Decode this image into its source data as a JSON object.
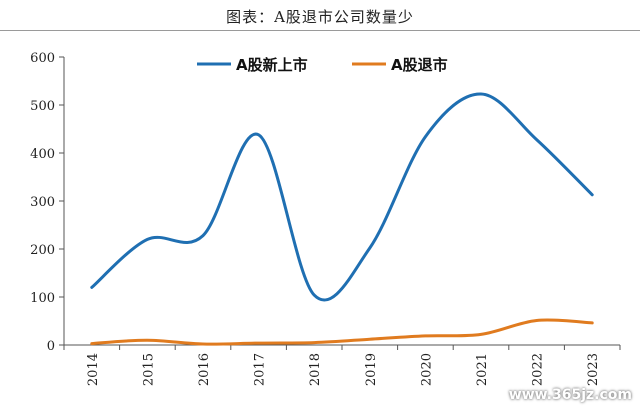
{
  "chart_data": {
    "type": "line",
    "title": "图表：A股退市公司数量少",
    "categories": [
      "2014",
      "2015",
      "2016",
      "2017",
      "2018",
      "2019",
      "2020",
      "2021",
      "2022",
      "2023"
    ],
    "y_ticks": [
      "0",
      "100",
      "200",
      "300",
      "400",
      "500",
      "600"
    ],
    "ylim": [
      0,
      600
    ],
    "grid": false,
    "legend_position": "top-center",
    "series": [
      {
        "name": "A股新上市",
        "color": "#1f6fb2",
        "values": [
          120,
          220,
          228,
          438,
          104,
          202,
          434,
          523,
          428,
          313
        ]
      },
      {
        "name": "A股退市",
        "color": "#e07b1f",
        "values": [
          3,
          10,
          2,
          4,
          5,
          12,
          19,
          22,
          51,
          46
        ]
      }
    ]
  },
  "watermark": "www.365jz.com"
}
